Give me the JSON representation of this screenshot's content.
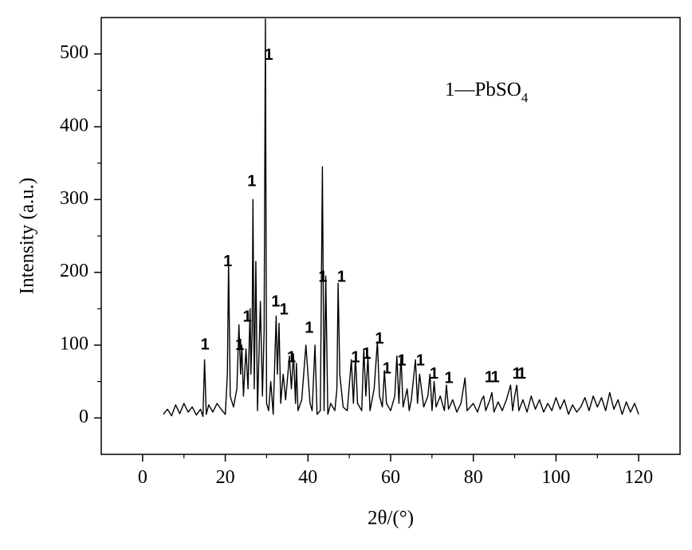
{
  "chart_data": {
    "type": "line",
    "xlabel": "2θ/(°)",
    "ylabel": "Intensity (a.u.)",
    "legend_text": {
      "main": "1—PbSO",
      "sub": "4"
    },
    "xlim": [
      -10,
      130
    ],
    "ylim": [
      -50,
      550
    ],
    "xticks": [
      0,
      20,
      40,
      60,
      80,
      100,
      120
    ],
    "yticks": [
      0,
      100,
      200,
      300,
      400,
      500
    ],
    "color": "#000000",
    "x": [
      5,
      6,
      7,
      8,
      9,
      10,
      11,
      12,
      13,
      14,
      14.6,
      15,
      15.4,
      16,
      17,
      18,
      19,
      20,
      20.5,
      20.8,
      21.2,
      22,
      22.8,
      23.3,
      23.7,
      24,
      24.4,
      25,
      25.5,
      26,
      26.2,
      26.5,
      26.7,
      27,
      27.4,
      27.8,
      28.5,
      29,
      29.4,
      29.7,
      30,
      30.5,
      31,
      31.6,
      32.3,
      32.6,
      33,
      33.4,
      34,
      34.6,
      35.5,
      36,
      36.5,
      37,
      37.2,
      37.6,
      38.5,
      39.5,
      40,
      40.5,
      41,
      41.7,
      42.2,
      43,
      43.5,
      43.9,
      44.3,
      44.8,
      45.5,
      46.5,
      47,
      47.3,
      47.7,
      48.5,
      49.5,
      50.5,
      51,
      51.5,
      52,
      53,
      53.5,
      54,
      54.5,
      55,
      56,
      56.8,
      57.3,
      58,
      58.5,
      59,
      60,
      61,
      61.5,
      62,
      62.5,
      63,
      64,
      64.5,
      65,
      66,
      66.5,
      67,
      68,
      69,
      69.5,
      70,
      70.5,
      71,
      72,
      73,
      73.5,
      74,
      75,
      76,
      77,
      78,
      78.5,
      80,
      81,
      82,
      82.5,
      83,
      84,
      84.5,
      85,
      86,
      87,
      88,
      89,
      89.5,
      90,
      90.5,
      91,
      92,
      93,
      94,
      95,
      96,
      97,
      98,
      99,
      100,
      101,
      102,
      103,
      104,
      105,
      106,
      107,
      108,
      109,
      110,
      111,
      112,
      113,
      114,
      115,
      116,
      117,
      118,
      119,
      120
    ],
    "values": [
      5,
      12,
      3,
      18,
      6,
      20,
      8,
      15,
      4,
      12,
      2,
      80,
      5,
      18,
      8,
      20,
      12,
      5,
      60,
      215,
      30,
      15,
      40,
      128,
      60,
      100,
      30,
      95,
      40,
      150,
      60,
      120,
      300,
      40,
      215,
      10,
      160,
      30,
      120,
      548,
      20,
      10,
      50,
      5,
      140,
      60,
      130,
      20,
      60,
      25,
      85,
      40,
      88,
      20,
      75,
      10,
      25,
      100,
      60,
      20,
      10,
      100,
      5,
      10,
      345,
      10,
      195,
      5,
      20,
      10,
      40,
      185,
      60,
      15,
      10,
      80,
      20,
      85,
      20,
      10,
      95,
      30,
      85,
      10,
      40,
      105,
      30,
      15,
      65,
      20,
      10,
      30,
      85,
      20,
      85,
      15,
      40,
      10,
      25,
      80,
      20,
      60,
      15,
      30,
      60,
      10,
      50,
      15,
      30,
      10,
      45,
      12,
      25,
      8,
      20,
      55,
      10,
      20,
      8,
      25,
      30,
      10,
      25,
      35,
      8,
      22,
      10,
      25,
      45,
      10,
      30,
      45,
      10,
      25,
      8,
      30,
      12,
      25,
      8,
      20,
      10,
      28,
      12,
      25,
      5,
      18,
      8,
      15,
      28,
      10,
      30,
      15,
      28,
      10,
      35,
      12,
      25,
      5,
      22,
      8,
      20,
      5
    ],
    "annotations": [
      {
        "text": "1",
        "x": 15.1,
        "y": 100
      },
      {
        "text": "1",
        "x": 20.6,
        "y": 214
      },
      {
        "text": "1",
        "x": 26.4,
        "y": 324
      },
      {
        "text": "1",
        "x": 30.5,
        "y": 498
      },
      {
        "text": "1",
        "x": 25.3,
        "y": 138
      },
      {
        "text": "1",
        "x": 23.5,
        "y": 99
      },
      {
        "text": "1",
        "x": 32.2,
        "y": 159
      },
      {
        "text": "1",
        "x": 34.2,
        "y": 148
      },
      {
        "text": "1",
        "x": 36,
        "y": 82
      },
      {
        "text": "1",
        "x": 40.3,
        "y": 123
      },
      {
        "text": "1",
        "x": 43.6,
        "y": 193
      },
      {
        "text": "1",
        "x": 48.1,
        "y": 193
      },
      {
        "text": "1",
        "x": 51.5,
        "y": 82
      },
      {
        "text": "1",
        "x": 54.2,
        "y": 87
      },
      {
        "text": "1",
        "x": 57.3,
        "y": 108
      },
      {
        "text": "1",
        "x": 59.1,
        "y": 67
      },
      {
        "text": "1",
        "x": 62.7,
        "y": 78
      },
      {
        "text": "1",
        "x": 67.2,
        "y": 78
      },
      {
        "text": "1",
        "x": 70.5,
        "y": 60
      },
      {
        "text": "1",
        "x": 74.1,
        "y": 54
      },
      {
        "text": "1",
        "x": 83.8,
        "y": 55
      },
      {
        "text": "1",
        "x": 85.3,
        "y": 55
      },
      {
        "text": "1",
        "x": 90.5,
        "y": 60
      },
      {
        "text": "1",
        "x": 91.7,
        "y": 60
      }
    ]
  }
}
